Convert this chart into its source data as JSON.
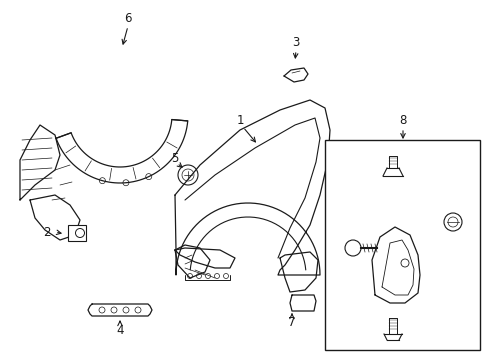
{
  "background_color": "#ffffff",
  "line_color": "#1a1a1a",
  "fig_width": 4.89,
  "fig_height": 3.6,
  "dpi": 100,
  "label_fontsize": 8.5,
  "lw": 0.9
}
